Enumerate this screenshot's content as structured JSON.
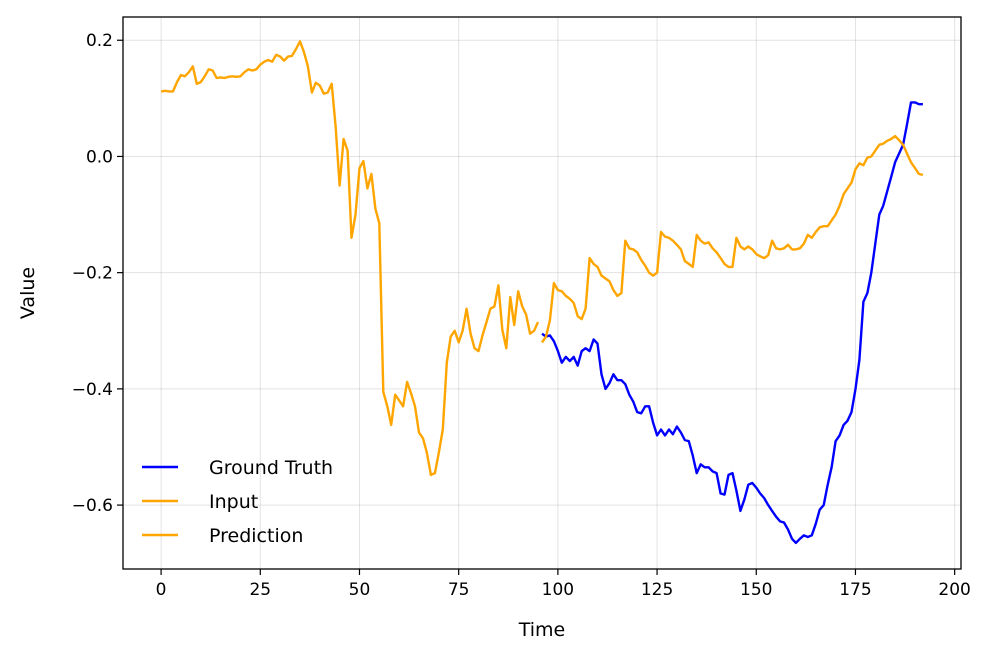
{
  "chart_data": {
    "type": "line",
    "title": "",
    "xlabel": "Time",
    "ylabel": "Value",
    "xlim": [
      -9.6,
      201.6
    ],
    "ylim": [
      -0.71,
      0.24
    ],
    "x_ticks": [
      0,
      25,
      50,
      75,
      100,
      125,
      150,
      175,
      200
    ],
    "y_ticks": [
      -0.6,
      -0.4,
      -0.2,
      0.0,
      0.2
    ],
    "x_tick_labels": [
      "0",
      "25",
      "50",
      "75",
      "100",
      "125",
      "150",
      "175",
      "200"
    ],
    "y_tick_labels": [
      "−0.6",
      "−0.4",
      "−0.2",
      "0.0",
      "0.2"
    ],
    "grid": true,
    "legend_position": "lower-left",
    "series": [
      {
        "name": "Ground Truth",
        "color": "#0000ff",
        "points": [
          [
            96,
            -0.305
          ],
          [
            97,
            -0.31
          ],
          [
            98,
            -0.308
          ],
          [
            99,
            -0.318
          ],
          [
            100,
            -0.335
          ],
          [
            101,
            -0.355
          ],
          [
            102,
            -0.345
          ],
          [
            103,
            -0.352
          ],
          [
            104,
            -0.345
          ],
          [
            105,
            -0.36
          ],
          [
            106,
            -0.335
          ],
          [
            107,
            -0.33
          ],
          [
            108,
            -0.335
          ],
          [
            109,
            -0.315
          ],
          [
            110,
            -0.322
          ],
          [
            111,
            -0.375
          ],
          [
            112,
            -0.4
          ],
          [
            113,
            -0.39
          ],
          [
            114,
            -0.375
          ],
          [
            115,
            -0.385
          ],
          [
            116,
            -0.385
          ],
          [
            117,
            -0.392
          ],
          [
            118,
            -0.41
          ],
          [
            119,
            -0.422
          ],
          [
            120,
            -0.44
          ],
          [
            121,
            -0.442
          ],
          [
            122,
            -0.43
          ],
          [
            123,
            -0.43
          ],
          [
            124,
            -0.458
          ],
          [
            125,
            -0.48
          ],
          [
            126,
            -0.47
          ],
          [
            127,
            -0.48
          ],
          [
            128,
            -0.47
          ],
          [
            129,
            -0.478
          ],
          [
            130,
            -0.465
          ],
          [
            131,
            -0.475
          ],
          [
            132,
            -0.488
          ],
          [
            133,
            -0.49
          ],
          [
            134,
            -0.515
          ],
          [
            135,
            -0.545
          ],
          [
            136,
            -0.53
          ],
          [
            137,
            -0.535
          ],
          [
            138,
            -0.535
          ],
          [
            139,
            -0.542
          ],
          [
            140,
            -0.545
          ],
          [
            141,
            -0.58
          ],
          [
            142,
            -0.582
          ],
          [
            143,
            -0.548
          ],
          [
            144,
            -0.545
          ],
          [
            145,
            -0.575
          ],
          [
            146,
            -0.61
          ],
          [
            147,
            -0.59
          ],
          [
            148,
            -0.565
          ],
          [
            149,
            -0.562
          ],
          [
            150,
            -0.57
          ],
          [
            151,
            -0.58
          ],
          [
            152,
            -0.588
          ],
          [
            153,
            -0.6
          ],
          [
            154,
            -0.61
          ],
          [
            155,
            -0.62
          ],
          [
            156,
            -0.628
          ],
          [
            157,
            -0.63
          ],
          [
            158,
            -0.642
          ],
          [
            159,
            -0.658
          ],
          [
            160,
            -0.665
          ],
          [
            161,
            -0.658
          ],
          [
            162,
            -0.652
          ],
          [
            163,
            -0.655
          ],
          [
            164,
            -0.652
          ],
          [
            165,
            -0.632
          ],
          [
            166,
            -0.608
          ],
          [
            167,
            -0.6
          ],
          [
            168,
            -0.565
          ],
          [
            169,
            -0.535
          ],
          [
            170,
            -0.49
          ],
          [
            171,
            -0.48
          ],
          [
            172,
            -0.462
          ],
          [
            173,
            -0.455
          ],
          [
            174,
            -0.44
          ],
          [
            175,
            -0.4
          ],
          [
            176,
            -0.35
          ],
          [
            177,
            -0.25
          ],
          [
            178,
            -0.235
          ],
          [
            179,
            -0.2
          ],
          [
            180,
            -0.15
          ],
          [
            181,
            -0.1
          ],
          [
            182,
            -0.085
          ],
          [
            183,
            -0.06
          ],
          [
            184,
            -0.035
          ],
          [
            185,
            -0.01
          ],
          [
            186,
            0.005
          ],
          [
            187,
            0.02
          ],
          [
            188,
            0.055
          ],
          [
            189,
            0.093
          ],
          [
            190,
            0.093
          ],
          [
            191,
            0.09
          ],
          [
            192,
            0.09
          ]
        ]
      },
      {
        "name": "Input",
        "color": "#ffa500",
        "points": [
          [
            0,
            0.112
          ],
          [
            1,
            0.113
          ],
          [
            2,
            0.112
          ],
          [
            3,
            0.112
          ],
          [
            4,
            0.128
          ],
          [
            5,
            0.14
          ],
          [
            6,
            0.138
          ],
          [
            7,
            0.145
          ],
          [
            8,
            0.155
          ],
          [
            9,
            0.125
          ],
          [
            10,
            0.128
          ],
          [
            11,
            0.138
          ],
          [
            12,
            0.15
          ],
          [
            13,
            0.148
          ],
          [
            14,
            0.135
          ],
          [
            15,
            0.136
          ],
          [
            16,
            0.135
          ],
          [
            17,
            0.137
          ],
          [
            18,
            0.138
          ],
          [
            19,
            0.137
          ],
          [
            20,
            0.138
          ],
          [
            21,
            0.145
          ],
          [
            22,
            0.15
          ],
          [
            23,
            0.148
          ],
          [
            24,
            0.15
          ],
          [
            25,
            0.158
          ],
          [
            26,
            0.163
          ],
          [
            27,
            0.166
          ],
          [
            28,
            0.163
          ],
          [
            29,
            0.175
          ],
          [
            30,
            0.172
          ],
          [
            31,
            0.165
          ],
          [
            32,
            0.172
          ],
          [
            33,
            0.173
          ],
          [
            34,
            0.185
          ],
          [
            35,
            0.198
          ],
          [
            36,
            0.18
          ],
          [
            37,
            0.155
          ],
          [
            38,
            0.11
          ],
          [
            39,
            0.127
          ],
          [
            40,
            0.122
          ],
          [
            41,
            0.108
          ],
          [
            42,
            0.11
          ],
          [
            43,
            0.125
          ],
          [
            44,
            0.05
          ],
          [
            45,
            -0.05
          ],
          [
            46,
            0.03
          ],
          [
            47,
            0.01
          ],
          [
            48,
            -0.14
          ],
          [
            49,
            -0.1
          ],
          [
            50,
            -0.02
          ],
          [
            51,
            -0.008
          ],
          [
            52,
            -0.055
          ],
          [
            53,
            -0.03
          ],
          [
            54,
            -0.09
          ],
          [
            55,
            -0.115
          ],
          [
            56,
            -0.405
          ],
          [
            57,
            -0.43
          ],
          [
            58,
            -0.462
          ],
          [
            59,
            -0.41
          ],
          [
            60,
            -0.42
          ],
          [
            61,
            -0.43
          ],
          [
            62,
            -0.388
          ],
          [
            63,
            -0.408
          ],
          [
            64,
            -0.43
          ],
          [
            65,
            -0.475
          ],
          [
            66,
            -0.485
          ],
          [
            67,
            -0.51
          ],
          [
            68,
            -0.548
          ],
          [
            69,
            -0.545
          ],
          [
            70,
            -0.51
          ],
          [
            71,
            -0.47
          ],
          [
            72,
            -0.355
          ],
          [
            73,
            -0.31
          ],
          [
            74,
            -0.3
          ],
          [
            75,
            -0.32
          ],
          [
            76,
            -0.3
          ],
          [
            77,
            -0.262
          ],
          [
            78,
            -0.305
          ],
          [
            79,
            -0.33
          ],
          [
            80,
            -0.335
          ],
          [
            81,
            -0.308
          ],
          [
            82,
            -0.285
          ],
          [
            83,
            -0.262
          ],
          [
            84,
            -0.258
          ],
          [
            85,
            -0.222
          ],
          [
            86,
            -0.298
          ],
          [
            87,
            -0.33
          ],
          [
            88,
            -0.242
          ],
          [
            89,
            -0.29
          ],
          [
            90,
            -0.232
          ],
          [
            91,
            -0.258
          ],
          [
            92,
            -0.272
          ],
          [
            93,
            -0.305
          ],
          [
            94,
            -0.3
          ],
          [
            95,
            -0.285
          ]
        ]
      },
      {
        "name": "Prediction",
        "color": "#ffa500",
        "points": [
          [
            96,
            -0.32
          ],
          [
            97,
            -0.31
          ],
          [
            98,
            -0.282
          ],
          [
            99,
            -0.218
          ],
          [
            100,
            -0.23
          ],
          [
            101,
            -0.232
          ],
          [
            102,
            -0.24
          ],
          [
            103,
            -0.245
          ],
          [
            104,
            -0.252
          ],
          [
            105,
            -0.275
          ],
          [
            106,
            -0.28
          ],
          [
            107,
            -0.262
          ],
          [
            108,
            -0.175
          ],
          [
            109,
            -0.185
          ],
          [
            110,
            -0.19
          ],
          [
            111,
            -0.205
          ],
          [
            112,
            -0.21
          ],
          [
            113,
            -0.215
          ],
          [
            114,
            -0.23
          ],
          [
            115,
            -0.24
          ],
          [
            116,
            -0.235
          ],
          [
            117,
            -0.145
          ],
          [
            118,
            -0.158
          ],
          [
            119,
            -0.16
          ],
          [
            120,
            -0.165
          ],
          [
            121,
            -0.178
          ],
          [
            122,
            -0.188
          ],
          [
            123,
            -0.2
          ],
          [
            124,
            -0.205
          ],
          [
            125,
            -0.2
          ],
          [
            126,
            -0.13
          ],
          [
            127,
            -0.138
          ],
          [
            128,
            -0.14
          ],
          [
            129,
            -0.145
          ],
          [
            130,
            -0.152
          ],
          [
            131,
            -0.16
          ],
          [
            132,
            -0.18
          ],
          [
            133,
            -0.185
          ],
          [
            134,
            -0.19
          ],
          [
            135,
            -0.135
          ],
          [
            136,
            -0.145
          ],
          [
            137,
            -0.15
          ],
          [
            138,
            -0.148
          ],
          [
            139,
            -0.158
          ],
          [
            140,
            -0.165
          ],
          [
            141,
            -0.175
          ],
          [
            142,
            -0.185
          ],
          [
            143,
            -0.19
          ],
          [
            144,
            -0.19
          ],
          [
            145,
            -0.14
          ],
          [
            146,
            -0.155
          ],
          [
            147,
            -0.16
          ],
          [
            148,
            -0.155
          ],
          [
            149,
            -0.16
          ],
          [
            150,
            -0.168
          ],
          [
            151,
            -0.172
          ],
          [
            152,
            -0.175
          ],
          [
            153,
            -0.17
          ],
          [
            154,
            -0.145
          ],
          [
            155,
            -0.158
          ],
          [
            156,
            -0.16
          ],
          [
            157,
            -0.158
          ],
          [
            158,
            -0.152
          ],
          [
            159,
            -0.16
          ],
          [
            160,
            -0.16
          ],
          [
            161,
            -0.158
          ],
          [
            162,
            -0.15
          ],
          [
            163,
            -0.135
          ],
          [
            164,
            -0.14
          ],
          [
            165,
            -0.13
          ],
          [
            166,
            -0.122
          ],
          [
            167,
            -0.12
          ],
          [
            168,
            -0.12
          ],
          [
            169,
            -0.11
          ],
          [
            170,
            -0.1
          ],
          [
            171,
            -0.085
          ],
          [
            172,
            -0.065
          ],
          [
            173,
            -0.055
          ],
          [
            174,
            -0.045
          ],
          [
            175,
            -0.022
          ],
          [
            176,
            -0.012
          ],
          [
            177,
            -0.015
          ],
          [
            178,
            -0.002
          ],
          [
            179,
            0.0
          ],
          [
            180,
            0.01
          ],
          [
            181,
            0.02
          ],
          [
            182,
            0.022
          ],
          [
            183,
            0.027
          ],
          [
            184,
            0.03
          ],
          [
            185,
            0.035
          ],
          [
            186,
            0.028
          ],
          [
            187,
            0.02
          ],
          [
            188,
            0.005
          ],
          [
            189,
            -0.01
          ],
          [
            190,
            -0.02
          ],
          [
            191,
            -0.03
          ],
          [
            192,
            -0.032
          ]
        ]
      }
    ]
  }
}
